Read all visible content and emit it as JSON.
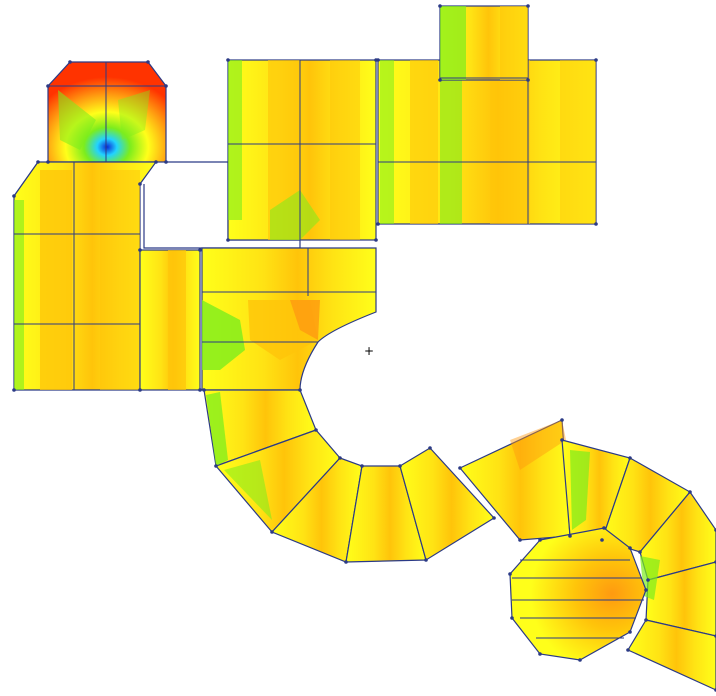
{
  "diagram": {
    "type": "finite-element contour plot (no visible labels)",
    "palette": {
      "background": "#ffffff",
      "yellow": "#ffff1a",
      "orange": "#ffc40a",
      "dark_orange": "#ff9a10",
      "red": "#ff3300",
      "green": "#7ced1d",
      "cyan": "#22d3ff",
      "blue": "#0b2bd6",
      "mesh_line": "#2b3a86"
    },
    "center_marker": "+"
  }
}
